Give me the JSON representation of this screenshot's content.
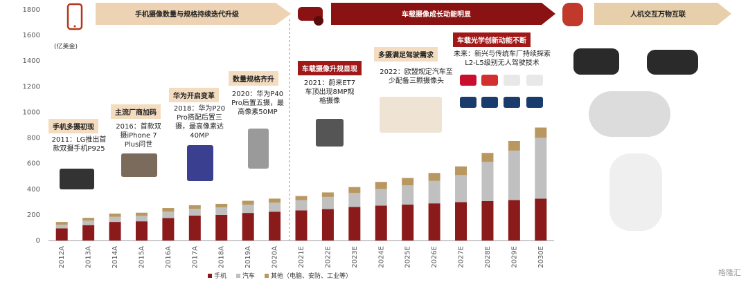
{
  "chart_data": {
    "type": "bar",
    "stacked": true,
    "unit_label": "(亿美金)",
    "categories": [
      "2012A",
      "2013A",
      "2014A",
      "2015A",
      "2016A",
      "2017A",
      "2018A",
      "2019A",
      "2020A",
      "2021E",
      "2022E",
      "2023E",
      "2024E",
      "2025E",
      "2026E",
      "2027E",
      "2028E",
      "2029E",
      "2030E"
    ],
    "series": [
      {
        "name": "手机",
        "color": "#8b1a1a",
        "values": [
          95,
          120,
          145,
          150,
          175,
          195,
          200,
          215,
          225,
          235,
          245,
          262,
          272,
          280,
          290,
          300,
          308,
          316,
          326
        ]
      },
      {
        "name": "汽车",
        "color": "#c0c0c0",
        "values": [
          28,
          35,
          40,
          42,
          50,
          52,
          58,
          65,
          70,
          80,
          95,
          110,
          130,
          150,
          175,
          210,
          305,
          385,
          475
        ]
      },
      {
        "name": "其他（电脑、安防、工业等）",
        "color": "#b89860",
        "values": [
          22,
          22,
          25,
          25,
          28,
          28,
          28,
          30,
          32,
          32,
          35,
          45,
          55,
          58,
          62,
          68,
          70,
          75,
          80
        ]
      }
    ],
    "ylim": [
      0,
      1800
    ],
    "yticks": [
      0,
      200,
      400,
      600,
      800,
      1000,
      1200,
      1400,
      1600,
      1800
    ],
    "legend_position": "bottom"
  },
  "phases": {
    "phase1": "手机摄像数量与规格持续迭代升级",
    "phase2": "车载摄像成长动能明显",
    "phase3": "人机交互万物互联"
  },
  "milestones": [
    {
      "tag": "手机多摄初现",
      "desc": "2011：LG推出首款双摄手机P925"
    },
    {
      "tag": "主流厂商加码",
      "desc": "2016：首款双摄iPhone 7 Plus问世"
    },
    {
      "tag": "华为开启变革",
      "desc": "2018：华为P20 Pro搭配后置三摄，最高像素达40MP"
    },
    {
      "tag": "数量规格齐升",
      "desc": "2020：华为P40 Pro后置五摄，最高像素50MP"
    },
    {
      "tag": "车载摄像升规显现",
      "desc": "2021：蔚来ET7车顶出现8MP规格摄像"
    },
    {
      "tag": "多摄满足驾驶需求",
      "desc": "2022：欧盟规定汽车至少配备三颗摄像头"
    },
    {
      "tag": "车载光学创新动能不断",
      "desc": "未来：新兴与传统车厂持续探索L2-L5级别无人驾驶技术"
    }
  ],
  "watermark": "格隆汇"
}
